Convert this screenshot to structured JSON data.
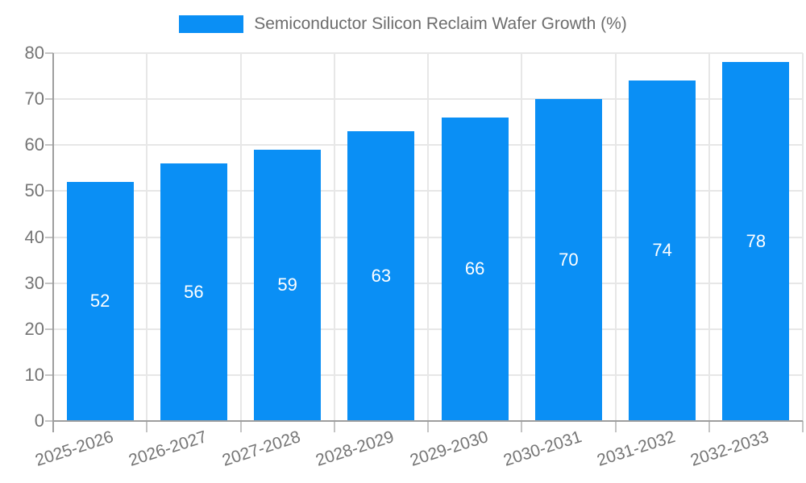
{
  "legend": {
    "label": "Semiconductor Silicon Reclaim Wafer Growth (%)"
  },
  "colors": {
    "bar": "#0a8ff5",
    "grid": "#e7e7e7",
    "axis": "#9e9e9e",
    "tick": "#c4c4c4",
    "axis_label": "#757575",
    "bar_label": "#ffffff",
    "legend_text": "#6d6d6d",
    "background": "#ffffff"
  },
  "chart_data": {
    "type": "bar",
    "title": "Semiconductor Silicon Reclaim Wafer Growth (%)",
    "categories": [
      "2025-2026",
      "2026-2027",
      "2027-2028",
      "2028-2029",
      "2029-2030",
      "2030-2031",
      "2031-2032",
      "2032-2033"
    ],
    "values": [
      52,
      56,
      59,
      63,
      66,
      70,
      74,
      78
    ],
    "series_name": "Semiconductor Silicon Reclaim Wafer Growth (%)",
    "xlabel": "",
    "ylabel": "",
    "ylim": [
      0,
      80
    ],
    "ytick_step": 10,
    "ytick_labels": [
      "0",
      "10",
      "20",
      "30",
      "40",
      "50",
      "60",
      "70",
      "80"
    ],
    "grid": true,
    "legend_position": "top-center",
    "bar_value_labels_visible": true,
    "bar_value_label_position": "middle-of-bar",
    "x_label_rotation_deg": -18
  }
}
